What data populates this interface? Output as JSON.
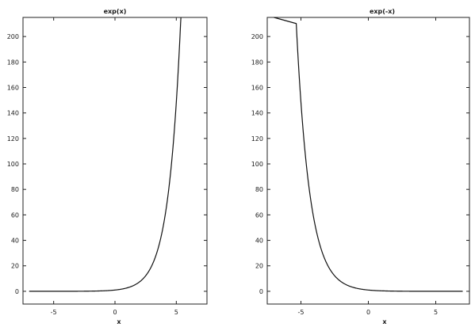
{
  "chart_data": [
    {
      "type": "line",
      "title": "exp(x)",
      "xlabel": "x",
      "ylabel": "",
      "xlim": [
        -7.5,
        7.5
      ],
      "ylim": [
        -10,
        215
      ],
      "xticks": [
        -5,
        0,
        5
      ],
      "yticks": [
        0,
        20,
        40,
        60,
        80,
        100,
        120,
        140,
        160,
        180,
        200
      ],
      "grid": false,
      "function": "exp(x)",
      "series": [
        {
          "x": [
            -7,
            -6,
            -5,
            -4,
            -3,
            -2,
            -1,
            0,
            1,
            2,
            2.5,
            3,
            3.5,
            4,
            4.5,
            5,
            5.25,
            5.37
          ],
          "y": [
            0.0009,
            0.0025,
            0.0067,
            0.018,
            0.05,
            0.135,
            0.37,
            1,
            2.72,
            7.39,
            12.18,
            20.09,
            33.12,
            54.6,
            90.02,
            148.41,
            190.57,
            215
          ]
        }
      ]
    },
    {
      "type": "line",
      "title": "exp(-x)",
      "xlabel": "x",
      "ylabel": "",
      "xlim": [
        -7.5,
        7.5
      ],
      "ylim": [
        -10,
        215
      ],
      "xticks": [
        -5,
        0,
        5
      ],
      "yticks": [
        0,
        20,
        40,
        60,
        80,
        100,
        120,
        140,
        160,
        180,
        200
      ],
      "grid": false,
      "function": "exp(-x)",
      "series": [
        {
          "x": [
            -5.37,
            -5.25,
            -5,
            -4.5,
            -4,
            -3.5,
            -3,
            -2.5,
            -2,
            -1,
            0,
            1,
            2,
            3,
            4,
            5,
            6,
            7
          ],
          "y": [
            215,
            190.57,
            148.41,
            90.02,
            54.6,
            33.12,
            20.09,
            12.18,
            7.39,
            2.72,
            1,
            0.37,
            0.135,
            0.05,
            0.018,
            0.0067,
            0.0025,
            0.0009
          ]
        }
      ]
    }
  ]
}
